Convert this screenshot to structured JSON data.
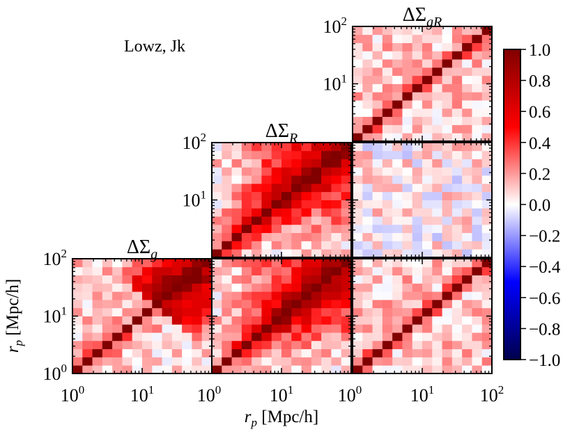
{
  "annotation": {
    "text": "Lowz, Jk",
    "color": "#ff0000"
  },
  "chart_data": {
    "type": "heatmap",
    "description_label": "correlation matrices",
    "n_bins": 14,
    "x": {
      "label_var": "r",
      "label_sub": "p",
      "label_unit": "[Mpc/h]",
      "scale": "log",
      "lim": [
        1,
        100
      ],
      "tick_values": [
        1,
        10,
        100
      ],
      "tick_base": "10",
      "tick_exponents": [
        "0",
        "1",
        "2"
      ]
    },
    "y": {
      "label_var": "r",
      "label_sub": "p",
      "label_unit": "[Mpc/h]",
      "scale": "log",
      "lim": [
        1,
        100
      ],
      "tick_values": [
        1,
        10,
        100
      ],
      "tick_base": "10",
      "tick_exponents": [
        "0",
        "1",
        "2"
      ]
    },
    "panels": [
      {
        "id": "gg",
        "row": 2,
        "col": 0,
        "title_main": "ΔΣ",
        "title_sub": "g",
        "pattern": "gg",
        "seed": 11
      },
      {
        "id": "Rg",
        "row": 2,
        "col": 1,
        "pattern": "RR",
        "seed": 23
      },
      {
        "id": "gRg",
        "row": 2,
        "col": 2,
        "pattern": "gR",
        "seed": 37
      },
      {
        "id": "RR",
        "row": 1,
        "col": 1,
        "title_main": "ΔΣ",
        "title_sub": "R",
        "pattern": "RR",
        "seed": 41
      },
      {
        "id": "cross",
        "row": 1,
        "col": 2,
        "pattern": "cross",
        "seed": 53
      },
      {
        "id": "gRgR",
        "row": 0,
        "col": 2,
        "title_main": "ΔΣ",
        "title_sub": "gR",
        "pattern": "gR",
        "seed": 67
      }
    ],
    "colorbar": {
      "colormap": "seismic",
      "vmin": -1.0,
      "vmax": 1.0,
      "ticks": [
        1.0,
        0.8,
        0.6,
        0.4,
        0.2,
        0.0,
        -0.2,
        -0.4,
        -0.6,
        -0.8,
        -1.0
      ],
      "tick_labels": [
        "1.0",
        "0.8",
        "0.6",
        "0.4",
        "0.2",
        "0.0",
        "−0.2",
        "−0.4",
        "−0.6",
        "−0.8",
        "−1.0"
      ]
    }
  }
}
